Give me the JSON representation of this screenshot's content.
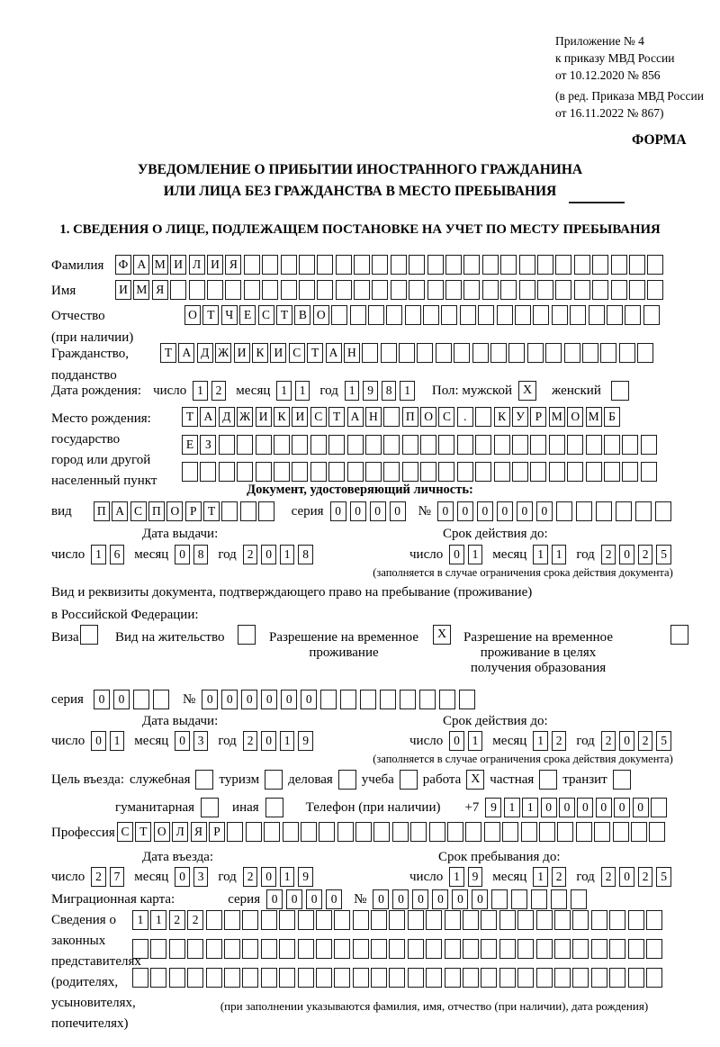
{
  "meta": {
    "appendix_lines": [
      "Приложение № 4",
      "к приказу МВД России",
      "от 10.12.2020 № 856"
    ],
    "edition_lines": [
      "(в ред. Приказа МВД России",
      "от 16.11.2022 № 867)"
    ],
    "form_label": "ФОРМА"
  },
  "title": {
    "line1": "УВЕДОМЛЕНИЕ О ПРИБЫТИИ ИНОСТРАННОГО ГРАЖДАНИНА",
    "line2": "ИЛИ ЛИЦА БЕЗ ГРАЖДАНСТВА В МЕСТО ПРЕБЫВАНИЯ"
  },
  "section1_heading": "1. СВЕДЕНИЯ О ЛИЦЕ, ПОДЛЕЖАЩЕМ ПОСТАНОВКЕ НА УЧЕТ ПО МЕСТУ ПРЕБЫВАНИЯ",
  "surname": {
    "label": "Фамилия",
    "value": "ФАМИЛИЯ",
    "cells": 30
  },
  "given_name": {
    "label": "Имя",
    "value": "ИМЯ",
    "cells": 30
  },
  "patronymic": {
    "label1": "Отчество",
    "label2": "(при наличии)",
    "value": "ОТЧЕСТВО",
    "cells": 26
  },
  "citizenship": {
    "label1": "Гражданство,",
    "label2": "подданство",
    "value": "ТАДЖИКИСТАН",
    "cells": 27
  },
  "birth_date": {
    "label": "Дата рождения:",
    "day_label": "число",
    "day": "12",
    "month_label": "месяц",
    "month": "11",
    "year_label": "год",
    "year": "1981",
    "sex_male_label": "Пол: мужской",
    "male_checked": true,
    "sex_female_label": "женский",
    "female_checked": false
  },
  "birth_place": {
    "label_lines": [
      "Место рождения:",
      "государство",
      "город или другой",
      "населенный пункт"
    ],
    "row1": {
      "value": "ТАДЖИКИСТАН ПОС. КУРМОМБ",
      "cells": 24
    },
    "row2": {
      "value": "ЕЗ",
      "cells": 26
    },
    "row3": {
      "value": "",
      "cells": 26
    }
  },
  "identity_doc": {
    "heading": "Документ, удостоверяющий личность:",
    "kind_label": "вид",
    "kind": {
      "value": "ПАСПОРТ",
      "cells": 10
    },
    "series_label": "серия",
    "series": {
      "value": "0000",
      "cells": 4
    },
    "number_label": "№",
    "number": {
      "value": "000000",
      "cells": 12
    },
    "issue_heading": "Дата выдачи:",
    "issue": {
      "day_label": "число",
      "day": "16",
      "month_label": "месяц",
      "month": "08",
      "year_label": "год",
      "year": "2018"
    },
    "valid_heading": "Срок действия до:",
    "valid": {
      "day_label": "число",
      "day": "01",
      "month_label": "месяц",
      "month": "11",
      "year_label": "год",
      "year": "2025"
    },
    "note": "(заполняется в случае ограничения срока действия документа)"
  },
  "residence_doc": {
    "intro_line1": "Вид и реквизиты документа, подтверждающего право на пребывание (проживание)",
    "intro_line2": "в Российской Федерации:",
    "visa_label": "Виза",
    "visa_checked": false,
    "residence_permit_label": "Вид на жительство",
    "residence_permit_checked": false,
    "temp_residence_lines": [
      "Разрешение на временное",
      "проживание"
    ],
    "temp_residence_checked": true,
    "temp_residence_edu_lines": [
      "Разрешение на временное",
      "проживание в целях",
      "получения образования"
    ],
    "temp_residence_edu_checked": false,
    "series_label": "серия",
    "series": {
      "value": "00",
      "cells": 4
    },
    "number_label": "№",
    "number": {
      "value": "000000",
      "cells": 14
    },
    "issue_heading": "Дата выдачи:",
    "issue": {
      "day_label": "число",
      "day": "01",
      "month_label": "месяц",
      "month": "03",
      "year_label": "год",
      "year": "2019"
    },
    "valid_heading": "Срок действия до:",
    "valid": {
      "day_label": "число",
      "day": "01",
      "month_label": "месяц",
      "month": "12",
      "year_label": "год",
      "year": "2025"
    },
    "note": "(заполняется в случае ограничения срока действия документа)"
  },
  "purpose": {
    "label": "Цель въезда:",
    "options": [
      {
        "label": "служебная",
        "checked": false
      },
      {
        "label": "туризм",
        "checked": false
      },
      {
        "label": "деловая",
        "checked": false
      },
      {
        "label": "учеба",
        "checked": false
      },
      {
        "label": "работа",
        "checked": true
      },
      {
        "label": "частная",
        "checked": false
      },
      {
        "label": "транзит",
        "checked": false
      }
    ],
    "row2_options": [
      {
        "label": "гуманитарная",
        "checked": false
      },
      {
        "label": "иная",
        "checked": false
      }
    ]
  },
  "phone": {
    "label": "Телефон (при наличии)",
    "prefix": "+7",
    "number": {
      "value": "911000000",
      "cells": 10
    }
  },
  "profession": {
    "label": "Профессия",
    "value": "СТОЛЯР",
    "cells": 30
  },
  "entry": {
    "date_heading": "Дата въезда:",
    "date": {
      "day_label": "число",
      "day": "27",
      "month_label": "месяц",
      "month": "03",
      "year_label": "год",
      "year": "2019"
    },
    "until_heading": "Срок пребывания до:",
    "until": {
      "day_label": "число",
      "day": "19",
      "month_label": "месяц",
      "month": "12",
      "year_label": "год",
      "year": "2025"
    }
  },
  "migration_card": {
    "label": "Миграционная карта:",
    "series_label": "серия",
    "series": {
      "value": "0000",
      "cells": 4
    },
    "number_label": "№",
    "number": {
      "value": "000000",
      "cells": 11
    }
  },
  "representatives": {
    "label_lines": [
      "Сведения о",
      "законных",
      "представителях",
      "(родителях,",
      "усыновителях,",
      "попечителях)"
    ],
    "row1": {
      "value": "1122",
      "cells": 29
    },
    "row2": {
      "value": "",
      "cells": 29
    },
    "row3": {
      "value": "",
      "cells": 29
    },
    "note": "(при заполнении указываются фамилия, имя, отчество (при наличии), дата рождения)"
  }
}
